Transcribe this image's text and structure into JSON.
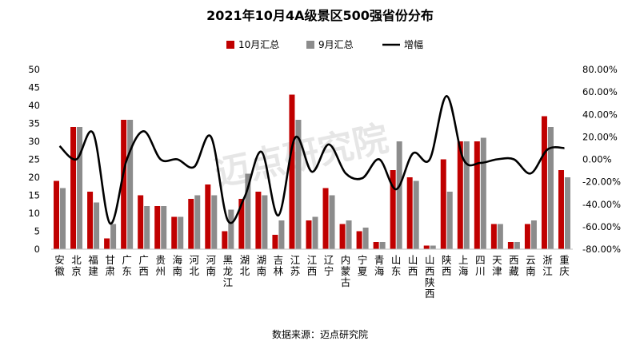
{
  "chart_data": {
    "type": "bar",
    "title": "2021年10月4A级景区500强省份分布",
    "source": "数据来源：迈点研究院",
    "watermark": "迈点研究院",
    "categories": [
      "安徽",
      "北京",
      "福建",
      "甘肃",
      "广东",
      "广西",
      "贵州",
      "海南",
      "河北",
      "河南",
      "黑龙江",
      "湖北",
      "湖南",
      "吉林",
      "江苏",
      "江西",
      "辽宁",
      "内蒙古",
      "宁夏",
      "青海",
      "山东",
      "山西",
      "山西陕西",
      "陕西",
      "上海",
      "四川",
      "天津",
      "西藏",
      "云南",
      "浙江",
      "重庆"
    ],
    "series": [
      {
        "name": "10月汇总",
        "type": "bar",
        "color": "#c00000",
        "values": [
          19,
          34,
          16,
          3,
          36,
          15,
          12,
          9,
          14,
          18,
          5,
          14,
          16,
          4,
          43,
          8,
          17,
          7,
          5,
          2,
          22,
          20,
          1,
          25,
          30,
          30,
          7,
          2,
          7,
          37,
          22
        ]
      },
      {
        "name": "9月汇总",
        "type": "bar",
        "color": "#8c8c8c",
        "values": [
          17,
          34,
          13,
          7,
          36,
          12,
          12,
          9,
          15,
          15,
          11,
          21,
          15,
          8,
          36,
          9,
          15,
          8,
          6,
          2,
          30,
          19,
          1,
          16,
          30,
          31,
          7,
          2,
          8,
          34,
          20
        ]
      },
      {
        "name": "增幅",
        "type": "line",
        "color": "#000000",
        "values": [
          11.8,
          0,
          23.1,
          -57.1,
          0,
          25,
          0,
          0,
          -6.7,
          20,
          -54.5,
          -33.3,
          6.7,
          -50,
          19.4,
          -11.1,
          13.3,
          -12.5,
          -16.7,
          0,
          -26.7,
          5.3,
          0,
          56.3,
          0,
          -3.2,
          0,
          0,
          -12.5,
          8.8,
          10
        ]
      }
    ],
    "y_left": {
      "min": 0,
      "max": 50,
      "ticks": [
        "0",
        "5",
        "10",
        "15",
        "20",
        "25",
        "30",
        "35",
        "40",
        "45",
        "50"
      ]
    },
    "y_right": {
      "min": -80,
      "max": 80,
      "ticks": [
        "-80.00%",
        "-60.00%",
        "-40.00%",
        "-20.00%",
        "0.00%",
        "20.00%",
        "40.00%",
        "60.00%",
        "80.00%"
      ]
    },
    "legend_position": "top"
  }
}
